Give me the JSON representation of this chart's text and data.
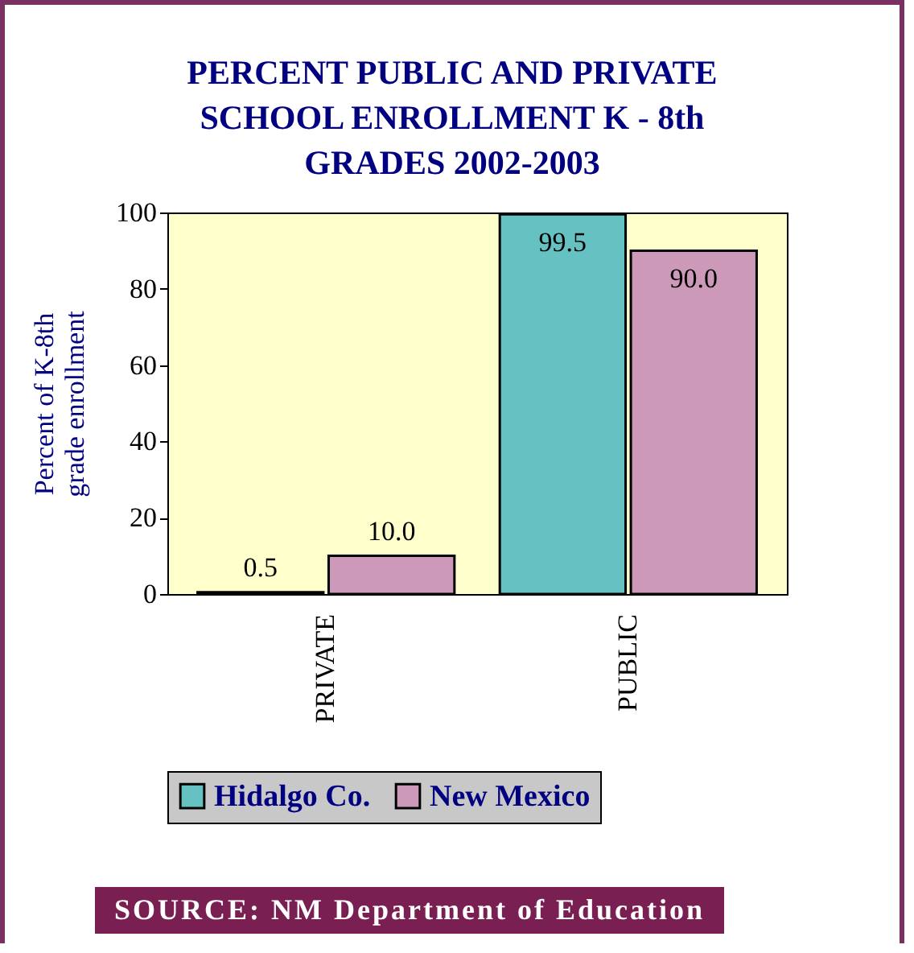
{
  "chart_data": {
    "type": "bar",
    "title": "PERCENT PUBLIC AND PRIVATE SCHOOL ENROLLMENT K - 8th GRADES 2002-2003",
    "ylabel": "Percent of K-8th grade enrollment",
    "categories": [
      "PRIVATE",
      "PUBLIC"
    ],
    "series": [
      {
        "name": "Hidalgo Co.",
        "color": "#66c2c2",
        "values": [
          0.5,
          99.5
        ],
        "value_labels": [
          "0.5",
          "99.5"
        ]
      },
      {
        "name": "New Mexico",
        "color": "#cc99b8",
        "values": [
          10.0,
          90.0
        ],
        "value_labels": [
          "10.0",
          "90.0"
        ]
      }
    ],
    "ylim": [
      0,
      100
    ],
    "yticks": [
      0,
      20,
      40,
      60,
      80,
      100
    ],
    "grid": false,
    "legend": "bottom",
    "annotations": [
      "SOURCE: NM Department of Education"
    ]
  }
}
